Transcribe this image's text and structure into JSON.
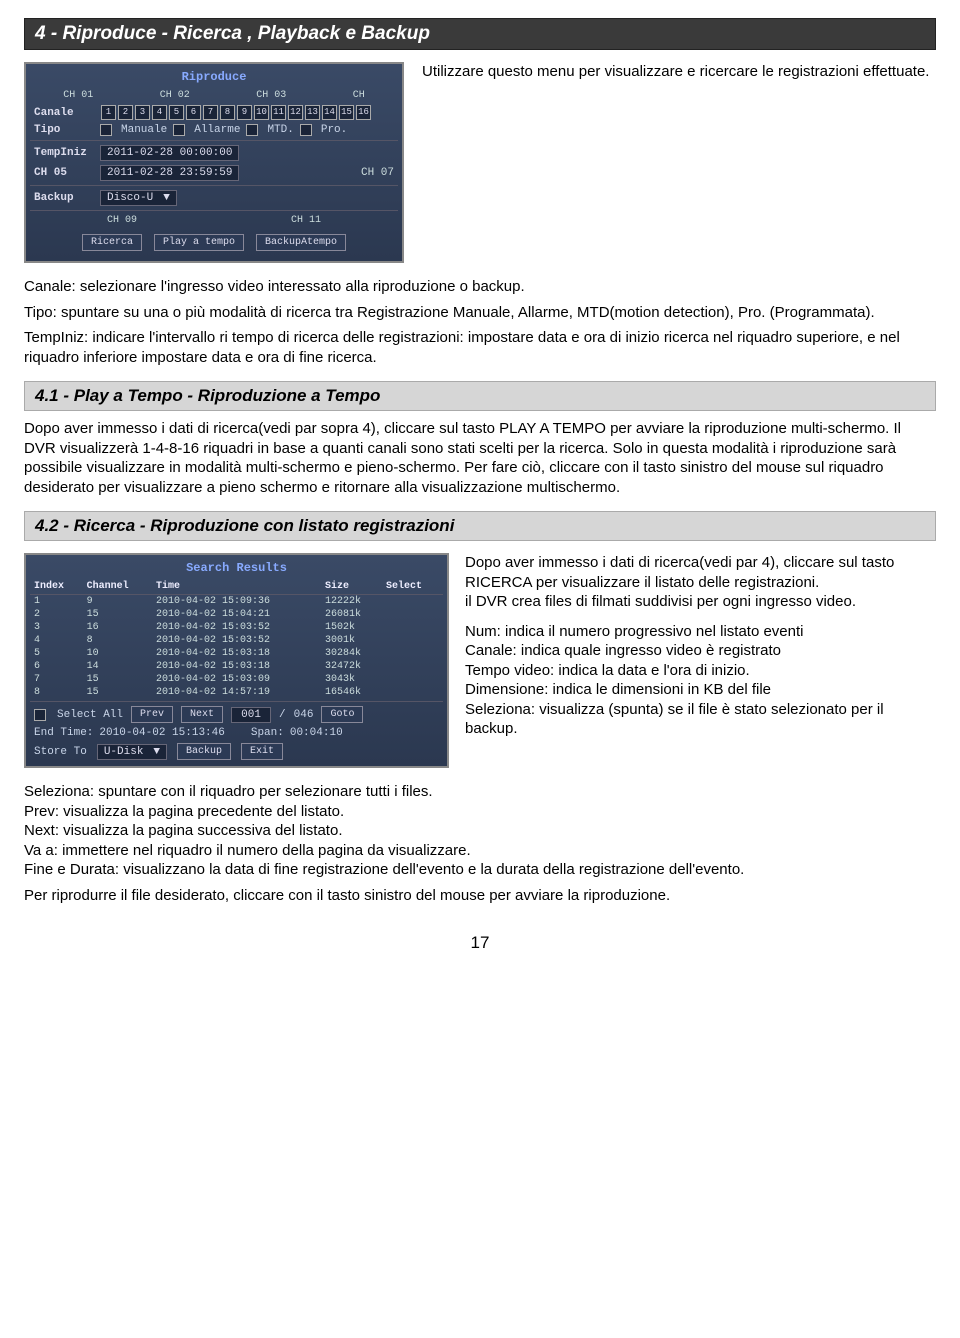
{
  "header": "4 - Riproduce - Ricerca , Playback e Backup",
  "intro": "Utilizzare questo menu per visualizzare e ricercare le registrazioni effettuate.",
  "screenshot1": {
    "title": "Riproduce",
    "top_channels": [
      "CH 01",
      "CH 02",
      "CH 03",
      "CH"
    ],
    "rows": {
      "canale": {
        "label": "Canale",
        "channels": [
          "1",
          "2",
          "3",
          "4",
          "5",
          "6",
          "7",
          "8",
          "9",
          "10",
          "11",
          "12",
          "13",
          "14",
          "15",
          "16"
        ]
      },
      "tipo": {
        "label": "Tipo",
        "options": [
          "Manuale",
          "Allarme",
          "MTD.",
          "Pro."
        ]
      },
      "tempiniz": {
        "label": "TempIniz",
        "value": "2011-02-28 00:00:00"
      },
      "ch05": {
        "label": "CH 05",
        "right": "CH 07",
        "value": "2011-02-28 23:59:59"
      },
      "backup": {
        "label": "Backup",
        "value": "Disco-U"
      }
    },
    "bottom_channels": [
      "CH 09",
      "CH 11"
    ],
    "buttons": [
      "Ricerca",
      "Play a tempo",
      "BackupAtempo"
    ]
  },
  "body1": {
    "p1": "Canale: selezionare l'ingresso video interessato alla riproduzione o backup.",
    "p2": "Tipo: spuntare su una o più modalità di ricerca tra Registrazione Manuale, Allarme, MTD(motion detection), Pro. (Programmata).",
    "p3": "TempIniz: indicare l'intervallo ri tempo di ricerca delle registrazioni: impostare data e ora di inizio ricerca nel riquadro superiore, e nel riquadro inferiore impostare data e ora di fine ricerca."
  },
  "section41": {
    "title": "4.1 -  Play a Tempo - Riproduzione a Tempo",
    "text": "Dopo aver immesso i dati di ricerca(vedi par sopra 4), cliccare sul tasto PLAY A TEMPO per avviare la riproduzione multi-schermo. Il DVR visualizzerà 1-4-8-16 riquadri in base a quanti canali sono stati scelti per la ricerca. Solo in questa modalità i riproduzione sarà possibile visualizzare in modalità multi-schermo e pieno-schermo. Per fare ciò, cliccare con il tasto sinistro del mouse sul riquadro desiderato per visualizzare a pieno schermo e ritornare alla visualizzazione multischermo."
  },
  "section42": {
    "title": "4.2 -  Ricerca - Riproduzione con listato registrazioni",
    "screenshot": {
      "title": "Search Results",
      "columns": [
        "Index",
        "Channel",
        "Time",
        "Size",
        "Select"
      ],
      "rows": [
        [
          "1",
          "9",
          "2010-04-02 15:09:36",
          "12222k",
          ""
        ],
        [
          "2",
          "15",
          "2010-04-02 15:04:21",
          "26081k",
          ""
        ],
        [
          "3",
          "16",
          "2010-04-02 15:03:52",
          "1502k",
          ""
        ],
        [
          "4",
          "8",
          "2010-04-02 15:03:52",
          "3001k",
          ""
        ],
        [
          "5",
          "10",
          "2010-04-02 15:03:18",
          "30284k",
          ""
        ],
        [
          "6",
          "14",
          "2010-04-02 15:03:18",
          "32472k",
          ""
        ],
        [
          "7",
          "15",
          "2010-04-02 15:03:09",
          "3043k",
          ""
        ],
        [
          "8",
          "15",
          "2010-04-02 14:57:19",
          "16546k",
          ""
        ]
      ],
      "select_all": "Select All",
      "prev": "Prev",
      "next": "Next",
      "page_cur": "001",
      "page_sep": "/",
      "page_total": "046",
      "goto": "Goto",
      "end_time_label": "End Time:",
      "end_time_value": "2010-04-02 15:13:46",
      "span_label": "Span:",
      "span_value": "00:04:10",
      "store_to": "Store To",
      "store_value": "U-Disk",
      "backup": "Backup",
      "exit": "Exit"
    },
    "side_text": {
      "p1": "Dopo aver immesso i dati di ricerca(vedi par 4), cliccare sul tasto RICERCA per visualizzare il listato delle registrazioni.\nil DVR crea files di filmati suddivisi per ogni ingresso video.",
      "p2": "Num: indica il numero progressivo nel listato eventi\nCanale: indica quale ingresso video è registrato\nTempo video: indica la data e l'ora di inizio.\nDimensione: indica le dimensioni in KB del file\nSeleziona: visualizza (spunta) se il file è stato selezionato per il backup."
    },
    "footer": {
      "p1": "Seleziona: spuntare con il riquadro per selezionare tutti i files.\nPrev: visualizza la pagina precedente del listato.\nNext: visualizza la pagina successiva del listato.\nVa a: immettere nel riquadro il numero della pagina da visualizzare.\nFine e Durata: visualizzano la data di fine registrazione dell'evento e la durata della registrazione dell'evento.",
      "p2": "Per riprodurre il file desiderato, cliccare con il tasto sinistro del mouse per avviare la riproduzione."
    }
  },
  "page_num": "17"
}
